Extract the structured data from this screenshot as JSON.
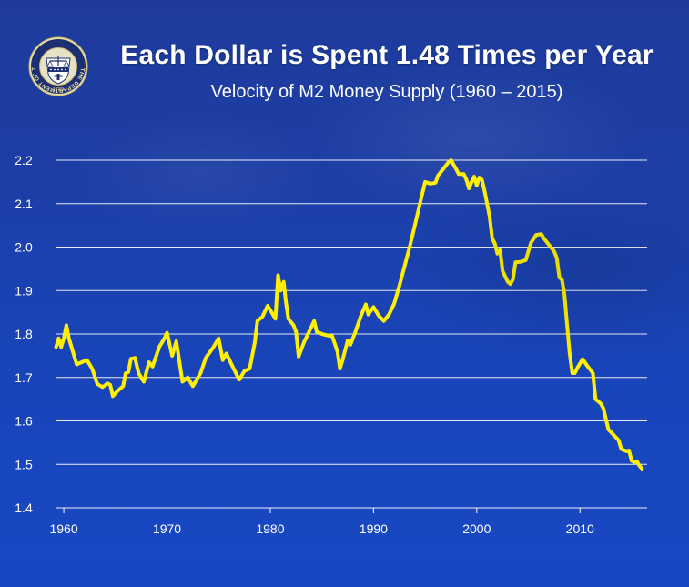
{
  "header": {
    "title": "Each Dollar is Spent 1.48 Times per Year",
    "subtitle": "Velocity of M2 Money Supply (1960 – 2015)",
    "seal_text": "THE DEPARTMENT OF THE TREASURY",
    "seal_year": "1789",
    "seal_icon": "treasury-seal-icon"
  },
  "colors": {
    "background": "#1d3fa8",
    "line": "#ffef00",
    "gridline": "#ffffff",
    "text": "#ffffff"
  },
  "chart_data": {
    "type": "line",
    "title": "Each Dollar is Spent 1.48 Times per Year",
    "subtitle": "Velocity of M2 Money Supply (1960 – 2015)",
    "xlabel": "",
    "ylabel": "",
    "xlim": [
      1959.2,
      2016.5
    ],
    "ylim": [
      1.4,
      2.2
    ],
    "grid": true,
    "x_ticks": [
      1960,
      1970,
      1980,
      1990,
      2000,
      2010
    ],
    "x_tick_labels": [
      "1960",
      "1970",
      "1980",
      "1990",
      "2000",
      "2010"
    ],
    "y_ticks": [
      1.4,
      1.5,
      1.6,
      1.7,
      1.8,
      1.9,
      2.0,
      2.1,
      2.2
    ],
    "y_tick_labels": [
      "1.4",
      "1.5",
      "1.6",
      "1.7",
      "1.8",
      "1.9",
      "2.0",
      "2.1",
      "2.2"
    ],
    "series": [
      {
        "values": [
          [
            1959.25,
            1.77
          ],
          [
            1959.5,
            1.79
          ],
          [
            1959.75,
            1.77
          ],
          [
            1960.0,
            1.79
          ],
          [
            1960.25,
            1.82
          ],
          [
            1960.5,
            1.79
          ],
          [
            1961.0,
            1.75
          ],
          [
            1961.25,
            1.73
          ],
          [
            1961.75,
            1.735
          ],
          [
            1962.25,
            1.74
          ],
          [
            1962.75,
            1.72
          ],
          [
            1963.25,
            1.685
          ],
          [
            1963.75,
            1.678
          ],
          [
            1964.25,
            1.686
          ],
          [
            1964.5,
            1.683
          ],
          [
            1964.75,
            1.657
          ],
          [
            1965.25,
            1.67
          ],
          [
            1965.75,
            1.68
          ],
          [
            1966.0,
            1.71
          ],
          [
            1966.25,
            1.712
          ],
          [
            1966.5,
            1.743
          ],
          [
            1966.9,
            1.745
          ],
          [
            1967.25,
            1.71
          ],
          [
            1967.75,
            1.69
          ],
          [
            1968.25,
            1.735
          ],
          [
            1968.6,
            1.725
          ],
          [
            1969.25,
            1.77
          ],
          [
            1969.75,
            1.79
          ],
          [
            1970.0,
            1.803
          ],
          [
            1970.5,
            1.75
          ],
          [
            1970.9,
            1.783
          ],
          [
            1971.5,
            1.69
          ],
          [
            1972.0,
            1.7
          ],
          [
            1972.5,
            1.68
          ],
          [
            1973.25,
            1.71
          ],
          [
            1973.75,
            1.745
          ],
          [
            1974.5,
            1.77
          ],
          [
            1975.0,
            1.79
          ],
          [
            1975.4,
            1.74
          ],
          [
            1975.75,
            1.755
          ],
          [
            1976.25,
            1.73
          ],
          [
            1976.75,
            1.706
          ],
          [
            1977.0,
            1.695
          ],
          [
            1977.5,
            1.715
          ],
          [
            1978.0,
            1.72
          ],
          [
            1978.5,
            1.78
          ],
          [
            1978.75,
            1.83
          ],
          [
            1979.25,
            1.84
          ],
          [
            1979.75,
            1.865
          ],
          [
            1980.25,
            1.845
          ],
          [
            1980.5,
            1.835
          ],
          [
            1980.75,
            1.935
          ],
          [
            1981.0,
            1.9
          ],
          [
            1981.3,
            1.92
          ],
          [
            1981.5,
            1.876
          ],
          [
            1981.75,
            1.835
          ],
          [
            1982.25,
            1.82
          ],
          [
            1982.5,
            1.805
          ],
          [
            1982.75,
            1.748
          ],
          [
            1983.25,
            1.78
          ],
          [
            1983.75,
            1.805
          ],
          [
            1984.25,
            1.83
          ],
          [
            1984.5,
            1.805
          ],
          [
            1985.0,
            1.8
          ],
          [
            1985.5,
            1.797
          ],
          [
            1986.0,
            1.795
          ],
          [
            1986.5,
            1.76
          ],
          [
            1986.75,
            1.72
          ],
          [
            1987.0,
            1.74
          ],
          [
            1987.5,
            1.785
          ],
          [
            1987.75,
            1.775
          ],
          [
            1988.25,
            1.805
          ],
          [
            1988.75,
            1.84
          ],
          [
            1989.25,
            1.868
          ],
          [
            1989.5,
            1.845
          ],
          [
            1990.0,
            1.862
          ],
          [
            1990.5,
            1.842
          ],
          [
            1991.0,
            1.83
          ],
          [
            1991.5,
            1.845
          ],
          [
            1992.0,
            1.87
          ],
          [
            1992.5,
            1.91
          ],
          [
            1993.0,
            1.955
          ],
          [
            1993.5,
            2.0
          ],
          [
            1994.0,
            2.05
          ],
          [
            1994.5,
            2.1
          ],
          [
            1995.0,
            2.15
          ],
          [
            1995.5,
            2.146
          ],
          [
            1996.0,
            2.148
          ],
          [
            1996.25,
            2.165
          ],
          [
            1996.75,
            2.18
          ],
          [
            1997.25,
            2.195
          ],
          [
            1997.5,
            2.2
          ],
          [
            1998.0,
            2.18
          ],
          [
            1998.25,
            2.168
          ],
          [
            1998.75,
            2.168
          ],
          [
            1999.0,
            2.155
          ],
          [
            1999.25,
            2.135
          ],
          [
            1999.5,
            2.15
          ],
          [
            1999.75,
            2.162
          ],
          [
            2000.0,
            2.142
          ],
          [
            2000.25,
            2.16
          ],
          [
            2000.5,
            2.155
          ],
          [
            2000.75,
            2.13
          ],
          [
            2001.25,
            2.07
          ],
          [
            2001.5,
            2.02
          ],
          [
            2001.75,
            2.008
          ],
          [
            2002.0,
            1.985
          ],
          [
            2002.25,
            1.993
          ],
          [
            2002.5,
            1.945
          ],
          [
            2003.0,
            1.92
          ],
          [
            2003.25,
            1.915
          ],
          [
            2003.5,
            1.925
          ],
          [
            2003.75,
            1.965
          ],
          [
            2004.25,
            1.966
          ],
          [
            2004.75,
            1.97
          ],
          [
            2005.0,
            1.99
          ],
          [
            2005.25,
            2.01
          ],
          [
            2005.75,
            2.028
          ],
          [
            2006.25,
            2.03
          ],
          [
            2006.5,
            2.02
          ],
          [
            2007.0,
            2.005
          ],
          [
            2007.5,
            1.99
          ],
          [
            2007.75,
            1.975
          ],
          [
            2008.0,
            1.93
          ],
          [
            2008.25,
            1.925
          ],
          [
            2008.5,
            1.89
          ],
          [
            2008.75,
            1.82
          ],
          [
            2009.0,
            1.755
          ],
          [
            2009.25,
            1.71
          ],
          [
            2009.5,
            1.71
          ],
          [
            2009.75,
            1.722
          ],
          [
            2010.25,
            1.742
          ],
          [
            2010.75,
            1.725
          ],
          [
            2011.25,
            1.71
          ],
          [
            2011.5,
            1.65
          ],
          [
            2012.0,
            1.64
          ],
          [
            2012.25,
            1.63
          ],
          [
            2012.5,
            1.605
          ],
          [
            2012.75,
            1.58
          ],
          [
            2013.25,
            1.568
          ],
          [
            2013.75,
            1.555
          ],
          [
            2014.0,
            1.535
          ],
          [
            2014.5,
            1.53
          ],
          [
            2014.75,
            1.532
          ],
          [
            2015.0,
            1.508
          ],
          [
            2015.25,
            1.505
          ],
          [
            2015.5,
            1.507
          ],
          [
            2015.75,
            1.497
          ],
          [
            2016.0,
            1.49
          ]
        ]
      }
    ]
  }
}
